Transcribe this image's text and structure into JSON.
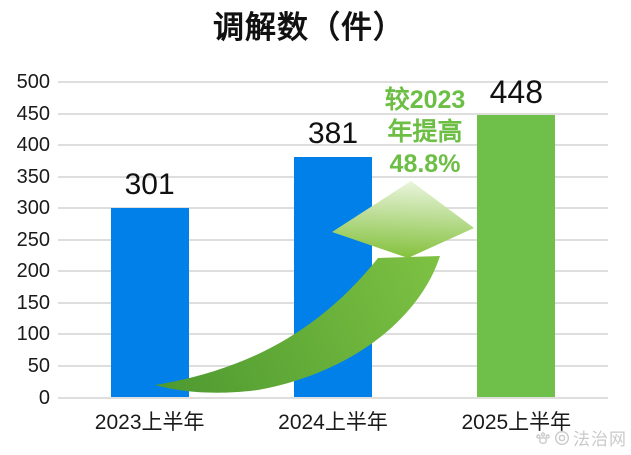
{
  "title": "调解数（件）",
  "annotation": {
    "lines": [
      "较2023",
      "年提高",
      "48.8%"
    ]
  },
  "watermark": {
    "site": "法治网"
  },
  "colors": {
    "bar_blue": "#0080E8",
    "bar_green": "#6EC04A",
    "annotation_green": "#6CBE44",
    "gridline": "#DEDEDE",
    "text": "#1A1A1A",
    "watermark_gray": "#BDBDBD"
  },
  "chart_data": {
    "type": "bar",
    "title": "调解数（件）",
    "categories": [
      "2023上半年",
      "2024上半年",
      "2025上半年"
    ],
    "values": [
      301,
      381,
      448
    ],
    "value_labels": [
      "301",
      "381",
      "448"
    ],
    "bar_colors": [
      "#0080E8",
      "#0080E8",
      "#6EC04A"
    ],
    "ylim": [
      0,
      500
    ],
    "ytick_step": 50,
    "yticks": [
      0,
      50,
      100,
      150,
      200,
      250,
      300,
      350,
      400,
      450,
      500
    ],
    "grid": true,
    "legend": "none",
    "annotation": "较2023年提高48.8%"
  }
}
